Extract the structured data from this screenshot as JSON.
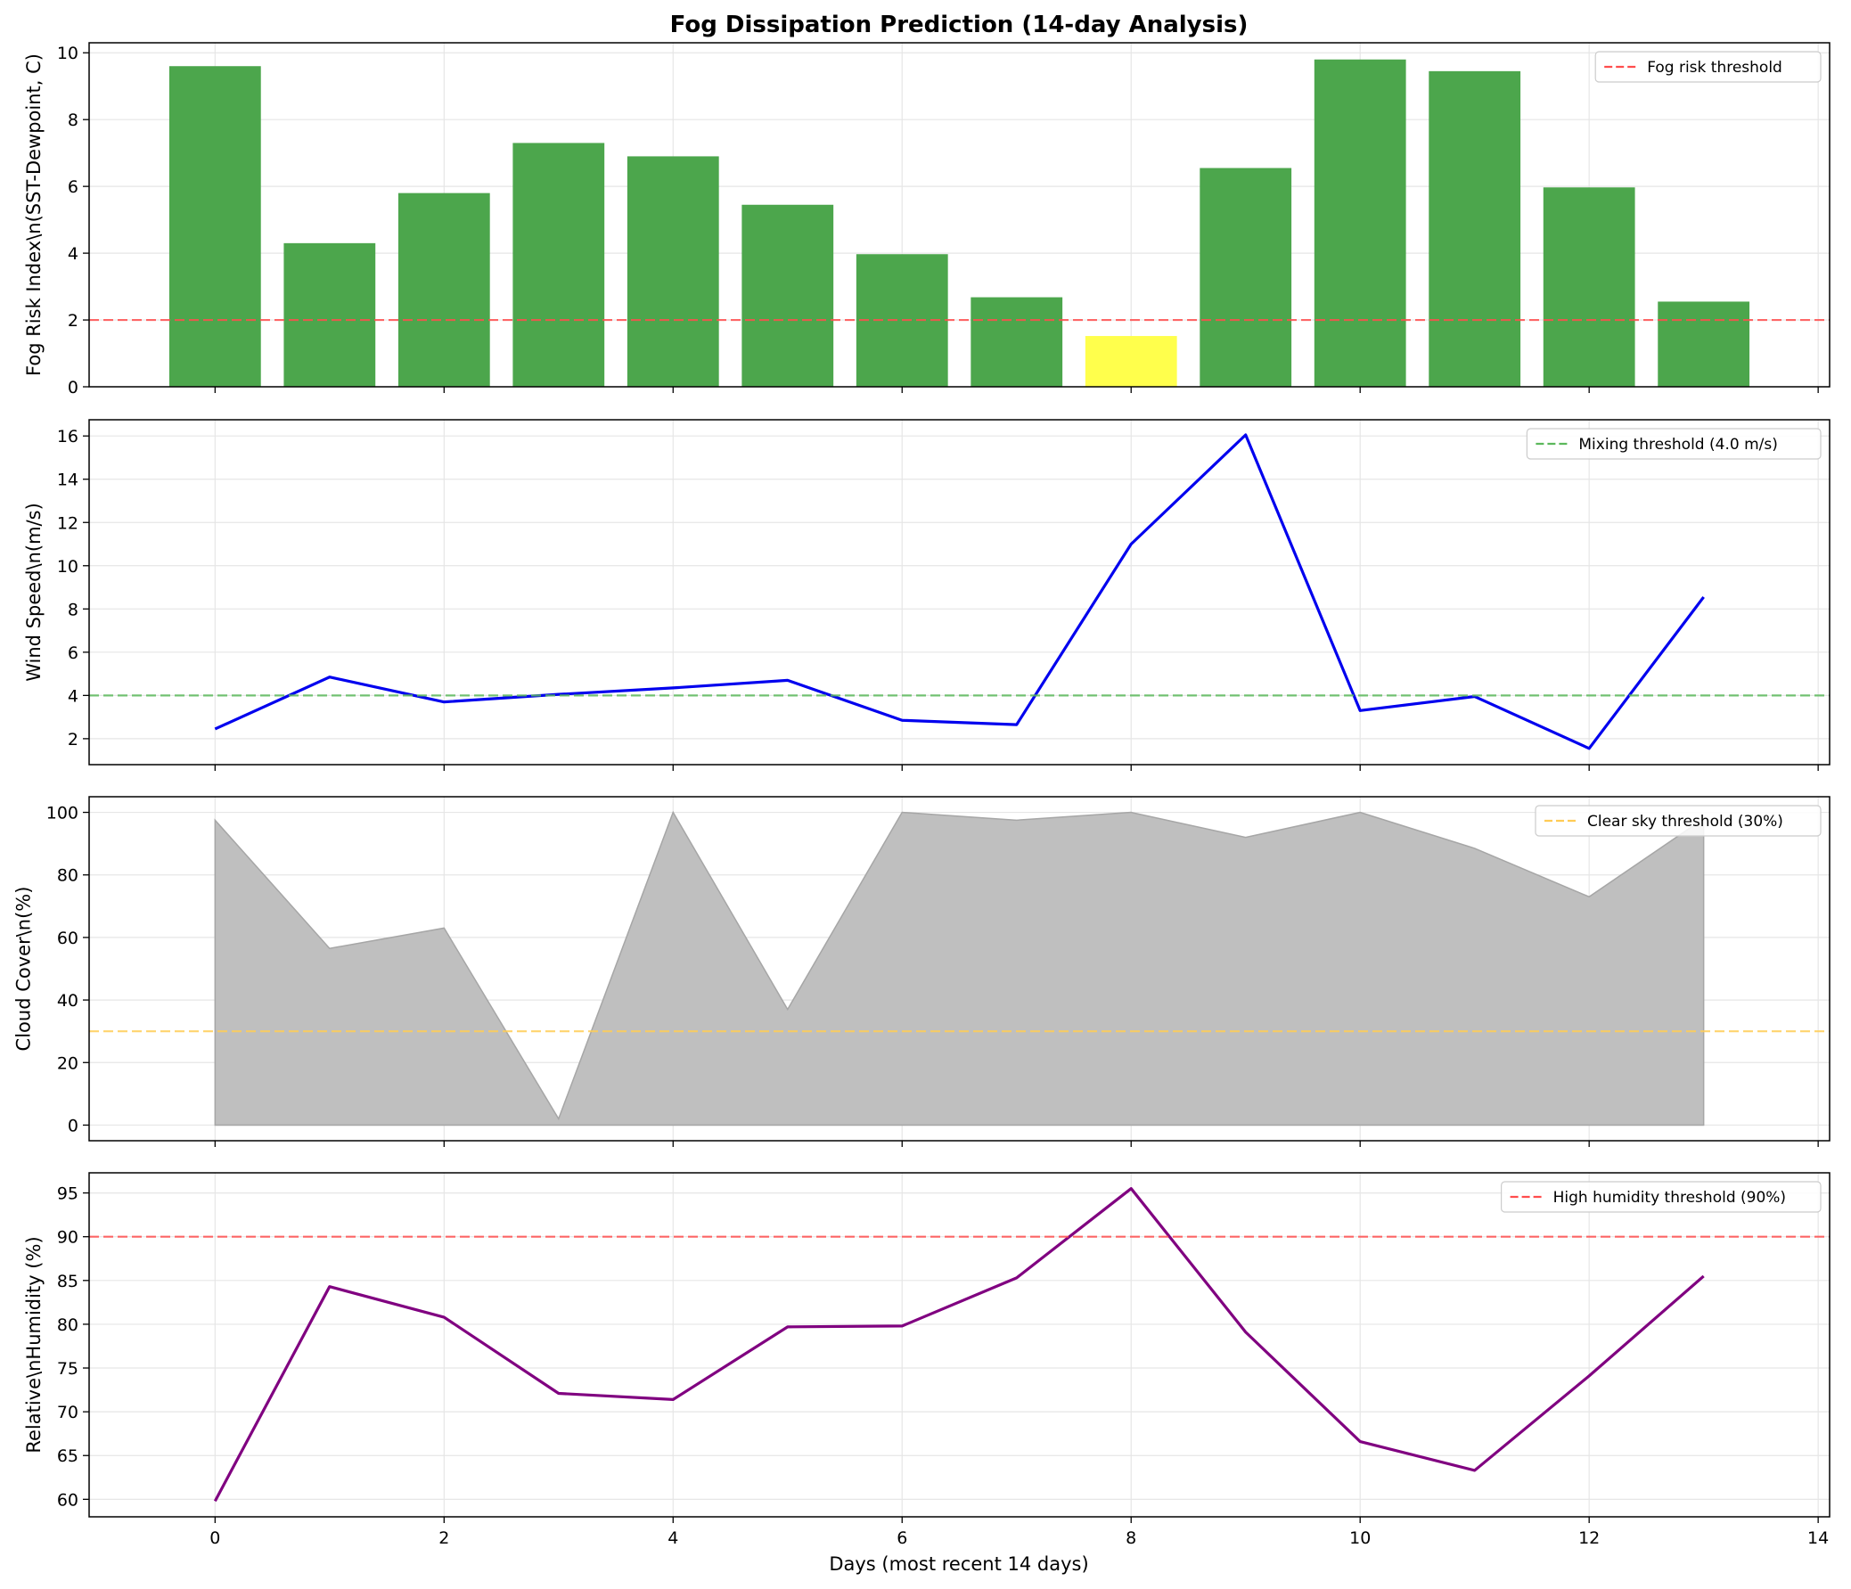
{
  "figure": {
    "title": "Fog Dissipation Prediction (14-day Analysis)",
    "xlabel": "Days (most recent 14 days)"
  },
  "chart_data": [
    {
      "type": "bar",
      "x": [
        0,
        1,
        2,
        3,
        4,
        5,
        6,
        7,
        8,
        9,
        10,
        11,
        12,
        13
      ],
      "values": [
        9.6,
        4.3,
        5.8,
        7.3,
        6.9,
        5.45,
        3.97,
        2.68,
        1.52,
        6.55,
        9.8,
        9.45,
        5.97,
        2.55
      ],
      "bar_colors": [
        "#4ca64c",
        "#4ca64c",
        "#4ca64c",
        "#4ca64c",
        "#4ca64c",
        "#4ca64c",
        "#4ca64c",
        "#4ca64c",
        "#ffff4c",
        "#4ca64c",
        "#4ca64c",
        "#4ca64c",
        "#4ca64c",
        "#4ca64c"
      ],
      "ylabel": "Fog Risk Index\\n(SST-Dewpoint, C)",
      "xlim": [
        -1.1,
        14.1
      ],
      "ylim": [
        0,
        10.3
      ],
      "yticks": [
        0,
        2,
        4,
        6,
        8,
        10
      ],
      "grid": true,
      "threshold": {
        "value": 2,
        "label": "Fog risk threshold",
        "color": "#ff4d4d"
      },
      "legend_position": "upper-right"
    },
    {
      "type": "line",
      "x": [
        0,
        1,
        2,
        3,
        4,
        5,
        6,
        7,
        8,
        9,
        10,
        11,
        12,
        13
      ],
      "values": [
        2.45,
        4.85,
        3.7,
        4.05,
        4.35,
        4.7,
        2.85,
        2.65,
        11.0,
        16.05,
        3.3,
        3.95,
        1.55,
        8.55
      ],
      "line_color": "#0000ee",
      "ylabel": "Wind Speed\\n(m/s)",
      "xlim": [
        -1.1,
        14.1
      ],
      "ylim": [
        0.8,
        16.75
      ],
      "yticks": [
        2,
        4,
        6,
        8,
        10,
        12,
        14,
        16
      ],
      "grid": true,
      "threshold": {
        "value": 4.0,
        "label": "Mixing threshold (4.0 m/s)",
        "color": "#5cb85c"
      },
      "legend_position": "upper-right"
    },
    {
      "type": "area",
      "x": [
        0,
        1,
        2,
        3,
        4,
        5,
        6,
        7,
        8,
        9,
        10,
        11,
        12,
        13
      ],
      "values": [
        97.5,
        56.5,
        63,
        2,
        100,
        37,
        100,
        97.5,
        100,
        92,
        100,
        88.5,
        73,
        98
      ],
      "fill_color": "#bfbfbf",
      "ylabel": "Cloud Cover\\n(%)",
      "xlim": [
        -1.1,
        14.1
      ],
      "ylim": [
        -5,
        105
      ],
      "yticks": [
        0,
        20,
        40,
        60,
        80,
        100
      ],
      "grid": true,
      "threshold": {
        "value": 30,
        "label": "Clear sky threshold (30%)",
        "color": "#ffcc55"
      },
      "legend_position": "upper-right"
    },
    {
      "type": "line",
      "x": [
        0,
        1,
        2,
        3,
        4,
        5,
        6,
        7,
        8,
        9,
        10,
        11,
        12,
        13
      ],
      "values": [
        59.8,
        84.3,
        80.8,
        72.1,
        71.4,
        79.7,
        79.8,
        85.3,
        95.5,
        79.1,
        66.6,
        63.3,
        74.1,
        85.5
      ],
      "line_color": "#800080",
      "ylabel": "Relative\\nHumidity (%)",
      "xlim": [
        -1.1,
        14.1
      ],
      "ylim": [
        58.0,
        97.3
      ],
      "yticks": [
        60,
        65,
        70,
        75,
        80,
        85,
        90,
        95
      ],
      "xticks": [
        0,
        2,
        4,
        6,
        8,
        10,
        12,
        14
      ],
      "grid": true,
      "threshold": {
        "value": 90,
        "label": "High humidity threshold (90%)",
        "color": "#ff4d4d"
      },
      "legend_position": "upper-right"
    }
  ]
}
